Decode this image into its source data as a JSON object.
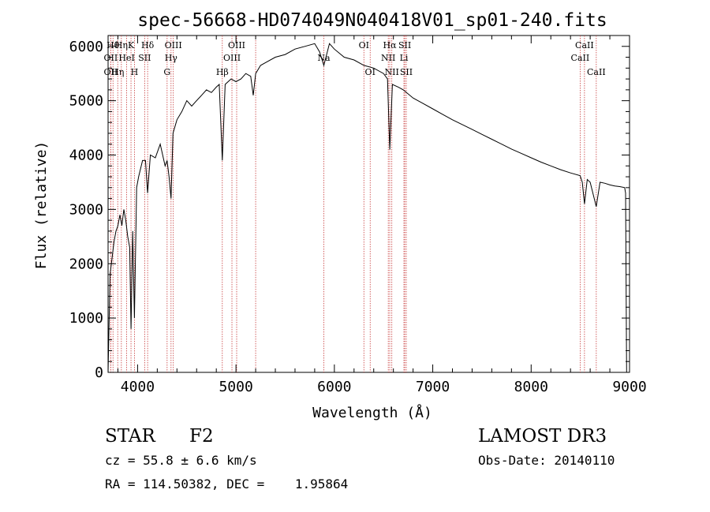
{
  "chart_data": {
    "type": "line",
    "title": "spec-56668-HD074049N040418V01_sp01-240.fits",
    "xlabel": "Wavelength (Å)",
    "ylabel": "Flux (relative)",
    "xlim": [
      3700,
      9000
    ],
    "ylim": [
      0,
      6200
    ],
    "xticks": [
      4000,
      5000,
      6000,
      7000,
      8000,
      9000
    ],
    "xtick_labels": [
      "4000",
      "5000",
      "6000",
      "7000",
      "8000",
      "9000"
    ],
    "yticks": [
      0,
      1000,
      2000,
      3000,
      4000,
      5000,
      6000
    ],
    "ytick_labels": [
      "0",
      "1000",
      "2000",
      "3000",
      "4000",
      "5000",
      "6000"
    ],
    "grid": false,
    "series": [
      {
        "x": [
          3700,
          3720,
          3740,
          3760,
          3780,
          3800,
          3820,
          3840,
          3860,
          3880,
          3900,
          3920,
          3933,
          3950,
          3968,
          3990,
          4010,
          4050,
          4080,
          4102,
          4130,
          4180,
          4230,
          4280,
          4300,
          4320,
          4340,
          4360,
          4400,
          4450,
          4500,
          4550,
          4600,
          4650,
          4700,
          4750,
          4800,
          4830,
          4861,
          4890,
          4950,
          5000,
          5050,
          5100,
          5150,
          5175,
          5200,
          5250,
          5300,
          5400,
          5500,
          5600,
          5700,
          5800,
          5850,
          5893,
          5950,
          6000,
          6100,
          6200,
          6300,
          6400,
          6500,
          6540,
          6563,
          6590,
          6650,
          6700,
          6800,
          6900,
          7000,
          7100,
          7200,
          7300,
          7400,
          7500,
          7600,
          7700,
          7800,
          7900,
          8000,
          8100,
          8200,
          8300,
          8400,
          8498,
          8520,
          8542,
          8570,
          8600,
          8662,
          8700,
          8750,
          8800,
          8850,
          8900,
          8950,
          8960,
          8970
        ],
        "y": [
          0,
          1800,
          2100,
          2400,
          2600,
          2700,
          2900,
          2700,
          3000,
          2800,
          2500,
          2300,
          800,
          2600,
          1000,
          3400,
          3600,
          3900,
          3900,
          3300,
          4000,
          3950,
          4200,
          3800,
          3900,
          3600,
          3200,
          4400,
          4650,
          4800,
          5000,
          4900,
          5000,
          5100,
          5200,
          5150,
          5250,
          5300,
          3900,
          5300,
          5400,
          5350,
          5400,
          5500,
          5450,
          5100,
          5500,
          5650,
          5700,
          5800,
          5850,
          5950,
          6000,
          6050,
          5900,
          5650,
          6050,
          5950,
          5800,
          5750,
          5650,
          5600,
          5500,
          5400,
          4100,
          5300,
          5250,
          5200,
          5050,
          4950,
          4850,
          4750,
          4650,
          4560,
          4470,
          4380,
          4290,
          4200,
          4110,
          4030,
          3950,
          3870,
          3800,
          3730,
          3670,
          3620,
          3500,
          3100,
          3550,
          3500,
          3050,
          3500,
          3480,
          3450,
          3430,
          3420,
          3400,
          3300,
          0
        ]
      }
    ],
    "lines": [
      {
        "w": 3750,
        "top": "Hθ",
        "row": 1
      },
      {
        "w": 3727,
        "top": "OII",
        "row": 2
      },
      {
        "w": 3727,
        "top": "OII",
        "row": 3
      },
      {
        "w": 3798,
        "top": "Hη",
        "row": 3
      },
      {
        "w": 3835,
        "top": "Hη",
        "row": 1
      },
      {
        "w": 3889,
        "top": "HeI",
        "row": 2
      },
      {
        "w": 3933,
        "top": "K",
        "row": 1
      },
      {
        "w": 3968,
        "top": "H",
        "row": 3
      },
      {
        "w": 4072,
        "top": "SII",
        "row": 2
      },
      {
        "w": 4102,
        "top": "Hδ",
        "row": 1
      },
      {
        "w": 4300,
        "top": "G",
        "row": 3
      },
      {
        "w": 4340,
        "top": "Hγ",
        "row": 2
      },
      {
        "w": 4363,
        "top": "OIII",
        "row": 1
      },
      {
        "w": 4861,
        "top": "Hβ",
        "row": 3
      },
      {
        "w": 4959,
        "top": "OIII",
        "row": 2
      },
      {
        "w": 5007,
        "top": "OIII",
        "row": 1
      },
      {
        "w": 5200,
        "top": "",
        "row": 0
      },
      {
        "w": 5893,
        "top": "Na",
        "row": 2
      },
      {
        "w": 6300,
        "top": "OI",
        "row": 1
      },
      {
        "w": 6364,
        "top": "OI",
        "row": 3
      },
      {
        "w": 6548,
        "top": "NII",
        "row": 2
      },
      {
        "w": 6563,
        "top": "Hα",
        "row": 1
      },
      {
        "w": 6584,
        "top": "NII",
        "row": 3
      },
      {
        "w": 6707,
        "top": "Li",
        "row": 2
      },
      {
        "w": 6716,
        "top": "SII",
        "row": 1
      },
      {
        "w": 6731,
        "top": "SII",
        "row": 3
      },
      {
        "w": 8498,
        "top": "CaII",
        "row": 2
      },
      {
        "w": 8542,
        "top": "CaII",
        "row": 1
      },
      {
        "w": 8662,
        "top": "CaII",
        "row": 3
      }
    ]
  },
  "info": {
    "object_type": "STAR",
    "subclass": "F2",
    "survey": "LAMOST DR3",
    "redshift": "cz = 55.8 ± 6.6 km/s",
    "obs_date": "Obs-Date: 20140110",
    "coords": "RA = 114.50382, DEC =    1.95864"
  }
}
